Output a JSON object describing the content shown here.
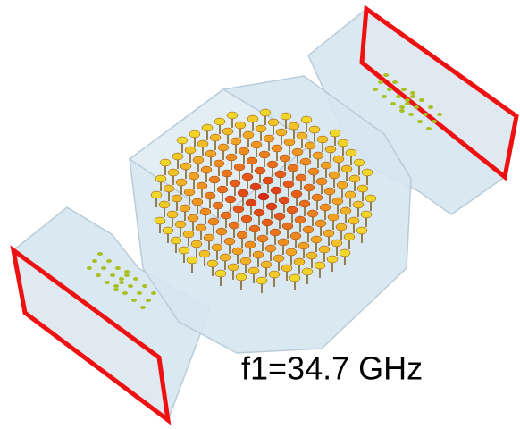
{
  "label": "f1=34.7 GHz"
}
